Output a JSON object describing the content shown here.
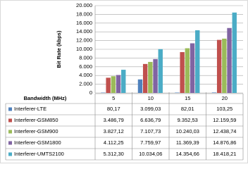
{
  "chart_data": {
    "type": "bar",
    "y_label": "Bit Rate (kbps)",
    "x_label": "Bandwidth (MHz)",
    "categories": [
      "5",
      "10",
      "15",
      "20"
    ],
    "ylim": [
      0,
      20000
    ],
    "yticks": [
      0,
      {
        "value": 2000,
        "label": "2.000"
      },
      {
        "value": 4000,
        "label": "4.000"
      },
      {
        "value": 6000,
        "label": "6.000"
      },
      {
        "value": 8000,
        "label": "8.000"
      },
      {
        "value": 10000,
        "label": "10.000"
      },
      {
        "value": 12000,
        "label": "12.000"
      },
      {
        "value": 14000,
        "label": "14.000"
      },
      {
        "value": 16000,
        "label": "16.000"
      },
      {
        "value": 18000,
        "label": "18.000"
      },
      {
        "value": 20000,
        "label": "20.000"
      }
    ],
    "grid": true,
    "series": [
      {
        "name": "Interferer-LTE",
        "color": "#4f81bd",
        "values": [
          80.17,
          3099.03,
          82.01,
          103.25
        ],
        "value_labels": [
          "80,17",
          "3.099,03",
          "82,01",
          "103,25"
        ]
      },
      {
        "name": "Interferer-GSM850",
        "color": "#c0504d",
        "values": [
          3486.79,
          6636.79,
          9352.53,
          12159.59
        ],
        "value_labels": [
          "3.486,79",
          "6.636,79",
          "9.352,53",
          "12.159,59"
        ]
      },
      {
        "name": "Interferer-GSM900",
        "color": "#9bbb59",
        "values": [
          3827.12,
          7107.73,
          10240.03,
          12438.74
        ],
        "value_labels": [
          "3.827,12",
          "7.107,73",
          "10.240,03",
          "12.438,74"
        ]
      },
      {
        "name": "Interferer-GSM1800",
        "color": "#8064a2",
        "values": [
          4112.25,
          7759.97,
          11369.39,
          14876.86
        ],
        "value_labels": [
          "4.112,25",
          "7.759,97",
          "11.369,39",
          "14.876,86"
        ]
      },
      {
        "name": "Interferer-UMTS2100",
        "color": "#4bacc6",
        "values": [
          5312.3,
          10034.06,
          14354.66,
          18418.21
        ],
        "value_labels": [
          "5.312,30",
          "10.034,06",
          "14.354,66",
          "18.418,21"
        ]
      }
    ]
  }
}
